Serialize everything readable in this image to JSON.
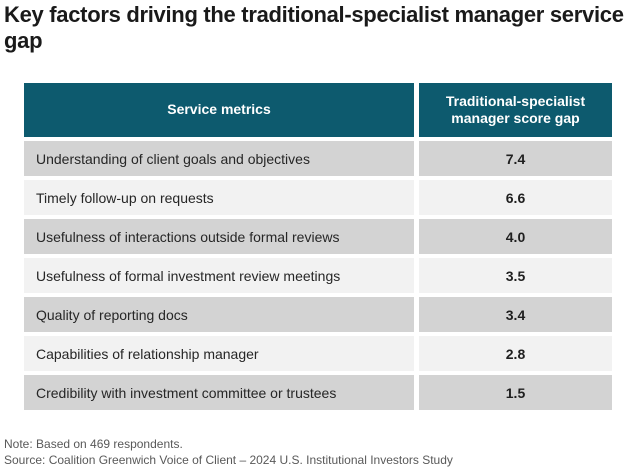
{
  "title": "Key factors driving the traditional-specialist manager service gap",
  "table": {
    "columns": [
      "Service metrics",
      "Traditional-specialist manager score gap"
    ],
    "rows": [
      {
        "metric": "Understanding of client goals and objectives",
        "value": "7.4"
      },
      {
        "metric": "Timely follow-up on requests",
        "value": "6.6"
      },
      {
        "metric": "Usefulness of interactions outside formal reviews",
        "value": "4.0"
      },
      {
        "metric": "Usefulness of formal investment review meetings",
        "value": "3.5"
      },
      {
        "metric": "Quality of reporting docs",
        "value": "3.4"
      },
      {
        "metric": "Capabilities of relationship manager",
        "value": "2.8"
      },
      {
        "metric": "Credibility with investment committee or trustees",
        "value": "1.5"
      }
    ]
  },
  "footnotes": {
    "note": "Note: Based on 469 respondents.",
    "source": "Source: Coalition Greenwich Voice of Client – 2024 U.S. Institutional Investors Study"
  },
  "colors": {
    "header_background": "#0d5a6e",
    "row_dark": "#d3d3d3",
    "row_light": "#f2f2f2",
    "title_text": "#1a1a1a",
    "footnote_text": "#595959"
  },
  "chart_data": {
    "type": "table",
    "title": "Key factors driving the traditional-specialist manager service gap",
    "columns": [
      "Service metrics",
      "Traditional-specialist manager score gap"
    ],
    "categories": [
      "Understanding of client goals and objectives",
      "Timely follow-up on requests",
      "Usefulness of interactions outside formal reviews",
      "Usefulness of formal investment review meetings",
      "Quality of reporting docs",
      "Capabilities of relationship manager",
      "Credibility with investment committee or trustees"
    ],
    "values": [
      7.4,
      6.6,
      4.0,
      3.5,
      3.4,
      2.8,
      1.5
    ],
    "note": "Note: Based on 469 respondents.",
    "source": "Source: Coalition Greenwich Voice of Client – 2024 U.S. Institutional Investors Study"
  }
}
